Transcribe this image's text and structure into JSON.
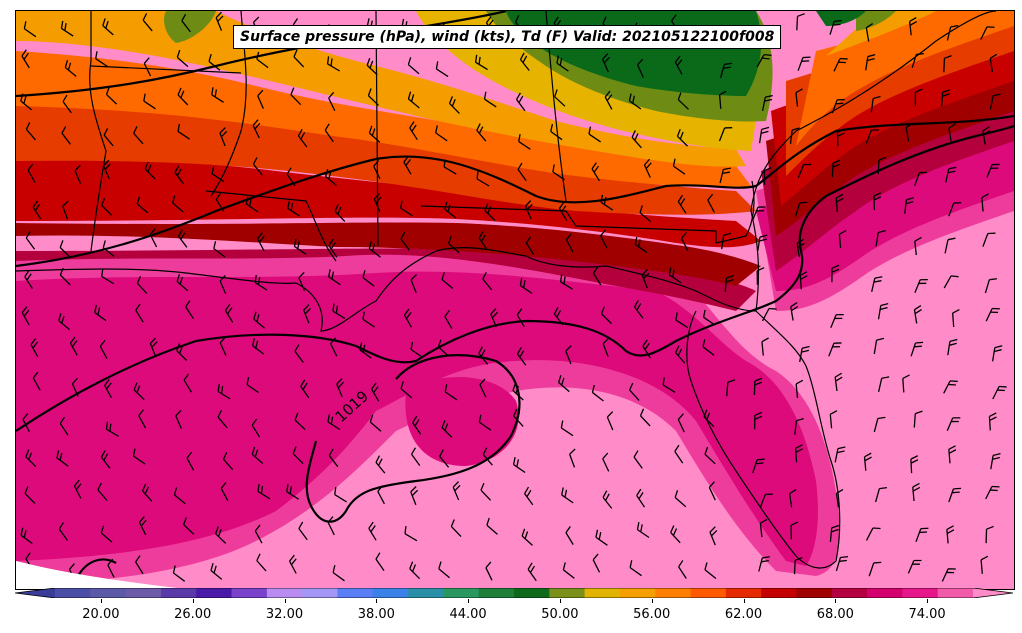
{
  "title": "Surface pressure (hPa), wind (kts), Td (F) Valid: 202105122100f008",
  "contour_label": "1019",
  "colorbar": {
    "ticks": [
      "20.00",
      "26.00",
      "32.00",
      "38.00",
      "44.00",
      "50.00",
      "56.00",
      "62.00",
      "68.00",
      "74.00"
    ],
    "tick_values": [
      20,
      26,
      32,
      38,
      44,
      50,
      56,
      62,
      68,
      74
    ],
    "min": 17,
    "max": 77,
    "colors": [
      "#3a3c9a",
      "#4b4fa6",
      "#5c5aa8",
      "#6d5aa8",
      "#5a3aa8",
      "#4a1aa8",
      "#7b42cc",
      "#b88cf0",
      "#a396f5",
      "#5a7ef5",
      "#3a82e8",
      "#2a90a8",
      "#2a9660",
      "#1e7e3a",
      "#0e6a1a",
      "#7a901a",
      "#e0b400",
      "#f5a000",
      "#ff8000",
      "#ff5a00",
      "#e62a00",
      "#c40000",
      "#a00000",
      "#b40040",
      "#d4006e",
      "#e6168a",
      "#f05aa8",
      "#ff8cc8"
    ]
  },
  "fill_colors": {
    "dark_green": "#0a6a1a",
    "olive": "#6e8c14",
    "gold": "#e6b400",
    "orange": "#f59c00",
    "orange_red": "#ff6a00",
    "red_orange": "#e63c00",
    "red": "#c80000",
    "dark_red": "#a00000",
    "crimson": "#b4003c",
    "magenta": "#dc0a7a",
    "pink": "#ee3c9c",
    "light_pink": "#ff8cc8"
  }
}
